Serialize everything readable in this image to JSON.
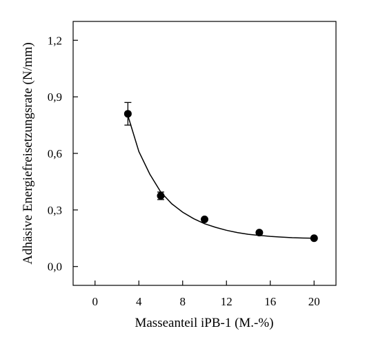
{
  "chart_data": {
    "type": "scatter",
    "title": "",
    "xlabel": "Masseanteil iPB-1 (M.-%)",
    "ylabel": "Adhäsive Energiefreisetzungsrate (N/mm)",
    "xlim": [
      -2,
      22
    ],
    "ylim": [
      -0.1,
      1.3
    ],
    "x_ticks": [
      0,
      4,
      8,
      12,
      16,
      20
    ],
    "x_tick_labels": [
      "0",
      "4",
      "8",
      "12",
      "16",
      "20"
    ],
    "y_ticks": [
      0.0,
      0.3,
      0.6,
      0.9,
      1.2
    ],
    "y_tick_labels": [
      "0,0",
      "0,3",
      "0,6",
      "0,9",
      "1,2"
    ],
    "grid": false,
    "legend": "none",
    "series": [
      {
        "x": [
          3,
          6,
          10,
          15,
          20
        ],
        "y": [
          0.81,
          0.375,
          0.25,
          0.18,
          0.15
        ],
        "y_error": [
          0.06,
          0.02,
          0.0,
          0.0,
          0.0
        ],
        "marker": "filled-circle",
        "color": "#000000"
      }
    ],
    "fit_curve": {
      "type": "exponential-decay",
      "x": [
        3,
        4,
        5,
        6,
        7,
        8,
        9,
        10,
        11,
        12,
        13,
        14,
        15,
        16,
        17,
        18,
        19,
        20
      ],
      "y": [
        0.8,
        0.61,
        0.49,
        0.395,
        0.333,
        0.288,
        0.254,
        0.227,
        0.208,
        0.192,
        0.18,
        0.171,
        0.165,
        0.16,
        0.156,
        0.153,
        0.151,
        0.15
      ],
      "color": "#000000"
    }
  }
}
